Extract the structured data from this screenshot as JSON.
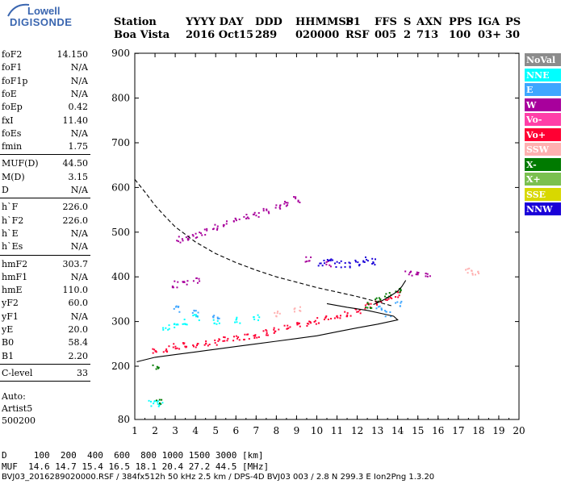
{
  "logo": {
    "line1": "Lowell",
    "line2": "DIGISONDE"
  },
  "header": {
    "labels": [
      "Station",
      "YYYY DAY",
      "DDD",
      "HHMMSS",
      "P1",
      "FFS",
      "S",
      "AXN",
      "PPS",
      "IGA",
      "PS"
    ],
    "values": [
      "Boa Vista",
      "2016 Oct15",
      "289",
      "020000",
      "RSF",
      "005",
      "2",
      "713",
      "100",
      "03+",
      "30"
    ]
  },
  "params": {
    "group1": [
      {
        "k": "foF2",
        "v": "14.150"
      },
      {
        "k": "foF1",
        "v": "N/A"
      },
      {
        "k": "foF1p",
        "v": "N/A"
      },
      {
        "k": "foE",
        "v": "N/A"
      },
      {
        "k": "foEp",
        "v": "0.42"
      },
      {
        "k": "fxI",
        "v": "11.40"
      },
      {
        "k": "foEs",
        "v": "N/A"
      },
      {
        "k": "fmin",
        "v": "1.75"
      }
    ],
    "group2": [
      {
        "k": "MUF(D)",
        "v": "44.50"
      },
      {
        "k": "M(D)",
        "v": "3.15"
      },
      {
        "k": "D",
        "v": "N/A"
      }
    ],
    "group3": [
      {
        "k": "h`F",
        "v": "226.0"
      },
      {
        "k": "h`F2",
        "v": "226.0"
      },
      {
        "k": "h`E",
        "v": "N/A"
      },
      {
        "k": "h`Es",
        "v": "N/A"
      }
    ],
    "group4": [
      {
        "k": "hmF2",
        "v": "303.7"
      },
      {
        "k": "hmF1",
        "v": "N/A"
      },
      {
        "k": "hmE",
        "v": "110.0"
      },
      {
        "k": "yF2",
        "v": "60.0"
      },
      {
        "k": "yF1",
        "v": "N/A"
      },
      {
        "k": "yE",
        "v": "20.0"
      },
      {
        "k": "B0",
        "v": "58.4"
      },
      {
        "k": "B1",
        "v": "2.20"
      }
    ],
    "group5": [
      {
        "k": "C-level",
        "v": "33"
      }
    ]
  },
  "auto": {
    "title": "Auto:",
    "line1": "Artist5",
    "line2": "500200"
  },
  "legend": [
    {
      "label": "NoVal",
      "color": "#8c8c8c"
    },
    {
      "label": "NNE",
      "color": "#00ffff"
    },
    {
      "label": "E",
      "color": "#3ea6ff"
    },
    {
      "label": "W",
      "color": "#a8009c"
    },
    {
      "label": "Vo-",
      "color": "#ff3fa8"
    },
    {
      "label": "Vo+",
      "color": "#ff0033"
    },
    {
      "label": "SSW",
      "color": "#ffb0b0"
    },
    {
      "label": "X-",
      "color": "#007a00"
    },
    {
      "label": "X+",
      "color": "#7ac050"
    },
    {
      "label": "SSE",
      "color": "#d8d800"
    },
    {
      "label": "NNW",
      "color": "#1a00d8"
    }
  ],
  "footer": {
    "d_row": "D     100  200  400  600  800 1000 1500 3000 [km]",
    "muf_row": "MUF  14.6 14.7 15.4 16.5 18.1 20.4 27.2 44.5 [MHz]",
    "file_row": "BVJ03_2016289020000.RSF / 384fx512h 50 kHz 2.5 km / DPS-4D BVJ03 003 / 2.8 N 299.3 E Ion2Png 1.3.20"
  },
  "chart_data": {
    "type": "scatter",
    "xlabel": "",
    "ylabel": "",
    "xlim": [
      1,
      20
    ],
    "ylim": [
      80,
      900
    ],
    "xticks": [
      "1",
      "2",
      "3",
      "4",
      "5",
      "6",
      "7",
      "8",
      "9",
      "10",
      "11",
      "12",
      "13",
      "14",
      "15",
      "16",
      "17",
      "18",
      "19",
      "20"
    ],
    "yticks": [
      "80",
      "200",
      "300",
      "400",
      "500",
      "600",
      "700",
      "800",
      "900"
    ],
    "y_tick_values": [
      80,
      200,
      300,
      400,
      500,
      600,
      700,
      800,
      900
    ],
    "grid": false,
    "legend_position": "right",
    "series": [
      {
        "name": "Vo+",
        "color": "#ff0033",
        "points": [
          [
            2.0,
            235
          ],
          [
            2.5,
            240
          ],
          [
            3.0,
            245
          ],
          [
            3.5,
            248
          ],
          [
            4.0,
            250
          ],
          [
            4.5,
            253
          ],
          [
            5.0,
            256
          ],
          [
            5.5,
            260
          ],
          [
            6.0,
            264
          ],
          [
            6.5,
            268
          ],
          [
            7.0,
            272
          ],
          [
            7.5,
            277
          ],
          [
            8.0,
            282
          ],
          [
            8.5,
            287
          ],
          [
            9.0,
            292
          ],
          [
            9.5,
            298
          ],
          [
            10.0,
            303
          ],
          [
            10.5,
            308
          ],
          [
            11.0,
            314
          ],
          [
            11.5,
            320
          ],
          [
            12.0,
            327
          ],
          [
            12.5,
            335
          ],
          [
            13.0,
            344
          ],
          [
            13.5,
            352
          ],
          [
            14.0,
            362
          ]
        ]
      },
      {
        "name": "W",
        "color": "#a8009c",
        "points": [
          [
            3.2,
            485
          ],
          [
            3.6,
            490
          ],
          [
            4.0,
            496
          ],
          [
            4.4,
            502
          ],
          [
            5.0,
            512
          ],
          [
            5.5,
            520
          ],
          [
            6.0,
            528
          ],
          [
            6.5,
            536
          ],
          [
            7.0,
            542
          ],
          [
            7.5,
            550
          ],
          [
            8.0,
            558
          ],
          [
            8.5,
            566
          ],
          [
            9.0,
            574
          ],
          [
            3.0,
            385
          ],
          [
            3.5,
            390
          ],
          [
            4.0,
            395
          ],
          [
            9.5,
            440
          ],
          [
            10.5,
            432
          ],
          [
            14.5,
            410
          ],
          [
            15.0,
            412
          ],
          [
            15.5,
            408
          ]
        ]
      },
      {
        "name": "NNW",
        "color": "#1a00d8",
        "points": [
          [
            10.2,
            432
          ],
          [
            10.6,
            436
          ],
          [
            11.0,
            430
          ],
          [
            11.5,
            428
          ],
          [
            12.0,
            434
          ],
          [
            12.4,
            440
          ],
          [
            12.8,
            436
          ]
        ]
      },
      {
        "name": "X-",
        "color": "#007a00",
        "points": [
          [
            12.5,
            338
          ],
          [
            13.0,
            348
          ],
          [
            13.5,
            360
          ],
          [
            14.0,
            372
          ],
          [
            2.0,
            200
          ],
          [
            2.2,
            120
          ]
        ]
      },
      {
        "name": "NNE",
        "color": "#00ffff",
        "points": [
          [
            2.5,
            290
          ],
          [
            3.0,
            295
          ],
          [
            3.5,
            300
          ],
          [
            4.0,
            310
          ],
          [
            5.0,
            300
          ],
          [
            6.0,
            305
          ],
          [
            7.0,
            310
          ],
          [
            1.8,
            118
          ],
          [
            2.2,
            118
          ]
        ]
      },
      {
        "name": "E",
        "color": "#3ea6ff",
        "points": [
          [
            3.0,
            330
          ],
          [
            4.0,
            320
          ],
          [
            5.0,
            315
          ],
          [
            13.0,
            330
          ],
          [
            13.5,
            320
          ],
          [
            14.0,
            340
          ]
        ]
      },
      {
        "name": "SSW",
        "color": "#ffb0b0",
        "points": [
          [
            8.0,
            320
          ],
          [
            9.0,
            330
          ],
          [
            17.5,
            415
          ],
          [
            17.8,
            410
          ]
        ]
      }
    ],
    "lines": [
      {
        "name": "profile-solid",
        "style": "solid",
        "points": [
          [
            1.1,
            210
          ],
          [
            2,
            220
          ],
          [
            3,
            226
          ],
          [
            4,
            232
          ],
          [
            5,
            238
          ],
          [
            6,
            244
          ],
          [
            7,
            250
          ],
          [
            8,
            256
          ],
          [
            9,
            262
          ],
          [
            10,
            268
          ],
          [
            11,
            277
          ],
          [
            12,
            286
          ],
          [
            13,
            294
          ],
          [
            14,
            303.7
          ],
          [
            13.8,
            312
          ],
          [
            13.2,
            318
          ],
          [
            12.5,
            325
          ],
          [
            11.5,
            332
          ],
          [
            10.5,
            340
          ]
        ]
      },
      {
        "name": "profile-dashed",
        "style": "dashed",
        "points": [
          [
            1.0,
            618
          ],
          [
            1.5,
            590
          ],
          [
            2,
            560
          ],
          [
            2.5,
            535
          ],
          [
            3,
            512
          ],
          [
            4,
            478
          ],
          [
            5,
            452
          ],
          [
            6,
            432
          ],
          [
            7,
            415
          ],
          [
            8,
            400
          ],
          [
            9,
            388
          ],
          [
            10,
            376
          ],
          [
            11,
            366
          ],
          [
            12,
            356
          ],
          [
            13,
            344
          ],
          [
            13.8,
            334
          ]
        ]
      },
      {
        "name": "trace-fit",
        "style": "solid",
        "points": [
          [
            12.8,
            338
          ],
          [
            13.2,
            346
          ],
          [
            13.6,
            356
          ],
          [
            14.0,
            368
          ],
          [
            14.2,
            378
          ],
          [
            14.4,
            392
          ]
        ]
      }
    ]
  }
}
